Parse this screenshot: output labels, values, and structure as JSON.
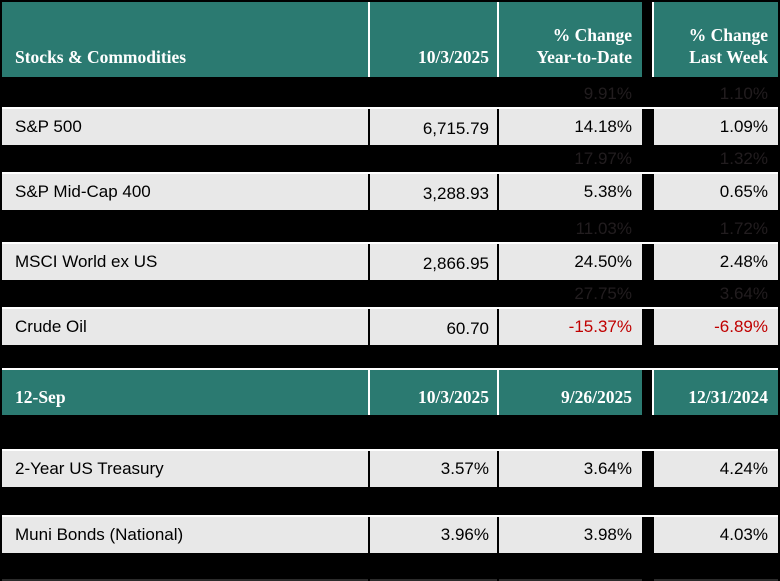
{
  "colors": {
    "background": "#000000",
    "header_bg": "#2B7A71",
    "row_bg": "#E8E8E8",
    "header_text": "#FFFFFF",
    "body_text": "#000000",
    "negative": "#C00000",
    "hidden_text": "#221D1F"
  },
  "table1": {
    "header": {
      "title": "Stocks & Commodities",
      "date": "10/3/2025",
      "ytd_line1": "% Change",
      "ytd_line2": "Year-to-Date",
      "week_line1": "% Change",
      "week_line2": "Last Week"
    },
    "rows": [
      {
        "type": "hidden",
        "ytd": "9.91%",
        "week": "1.10%"
      },
      {
        "type": "data",
        "label": "S&P 500",
        "value": "6,715.79",
        "ytd": "14.18%",
        "week": "1.09%",
        "ytd_negative": false,
        "week_negative": false
      },
      {
        "type": "hidden",
        "ytd": "17.97%",
        "week": "1.32%"
      },
      {
        "type": "data",
        "label": "S&P Mid-Cap 400",
        "value": "3,288.93",
        "ytd": "5.38%",
        "week": "0.65%",
        "ytd_negative": false,
        "week_negative": false
      },
      {
        "type": "hidden",
        "ytd": "11.03%",
        "week": "1.72%"
      },
      {
        "type": "data",
        "label": "MSCI World ex US",
        "value": "2,866.95",
        "ytd": "24.50%",
        "week": "2.48%",
        "ytd_negative": false,
        "week_negative": false
      },
      {
        "type": "hidden",
        "ytd": "27.75%",
        "week": "3.64%"
      },
      {
        "type": "data",
        "label": "Crude Oil",
        "value": "60.70",
        "ytd": "-15.37%",
        "week": "-6.89%",
        "ytd_negative": true,
        "week_negative": true
      }
    ]
  },
  "table2": {
    "header": {
      "title": "12-Sep",
      "col2": "10/3/2025",
      "col3": "9/26/2025",
      "col4": "12/31/2024"
    },
    "rows": [
      {
        "label": "2-Year US Treasury",
        "col2": "3.57%",
        "col3": "3.64%",
        "col4": "4.24%"
      },
      {
        "label": "Muni Bonds (National)",
        "col2": "3.96%",
        "col3": "3.98%",
        "col4": "4.03%"
      }
    ]
  }
}
